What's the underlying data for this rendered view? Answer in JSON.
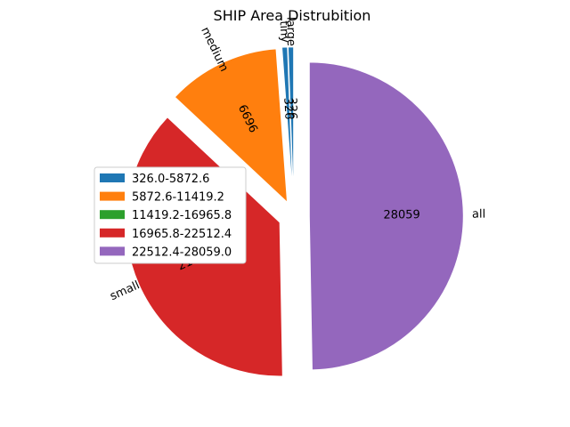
{
  "chart_data": {
    "type": "pie",
    "title": "SHIP Area Distrubition",
    "slices": [
      {
        "label": "large",
        "value": 326,
        "color": "#1f77b4",
        "explode": 0.1
      },
      {
        "label": "tiny",
        "value": 326,
        "color": "#1f77b4",
        "explode": 0.1
      },
      {
        "label": "medium",
        "value": 6696,
        "color": "#ff7f0e",
        "explode": 0.1
      },
      {
        "label": "small",
        "value": 21038,
        "color": "#d62728",
        "explode": 0.1
      },
      {
        "label": "all",
        "value": 28059,
        "color": "#9467bd",
        "explode": 0.1
      }
    ],
    "legend": {
      "placement": "left",
      "entries": [
        {
          "label": "326.0-5872.6",
          "color": "#1f77b4"
        },
        {
          "label": "5872.6-11419.2",
          "color": "#ff7f0e"
        },
        {
          "label": "11419.2-16965.8",
          "color": "#2ca02c"
        },
        {
          "label": "16965.8-22512.4",
          "color": "#d62728"
        },
        {
          "label": "22512.4-28059.0",
          "color": "#9467bd"
        }
      ]
    }
  }
}
